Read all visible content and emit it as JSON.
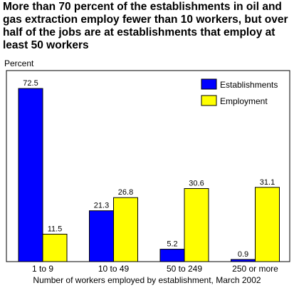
{
  "chart_data": {
    "type": "bar",
    "title": "More than 70 percent of the establishments in oil and gas extraction employ fewer than 10 workers, but over half of the jobs are at establishments that employ at least 50 workers",
    "ylabel": "Percent",
    "xlabel": "Number of workers employed by establishment, March 2002",
    "categories": [
      "1 to 9",
      "10 to 49",
      "50 to 249",
      "250 or more"
    ],
    "series": [
      {
        "name": "Establishments",
        "color": "#0000ff",
        "values": [
          72.5,
          21.3,
          5.2,
          0.9
        ]
      },
      {
        "name": "Employment",
        "color": "#ffff00",
        "values": [
          11.5,
          26.8,
          30.6,
          31.1
        ]
      }
    ],
    "ylim": [
      0,
      80
    ],
    "grid": false,
    "legend_position": "top-right"
  }
}
